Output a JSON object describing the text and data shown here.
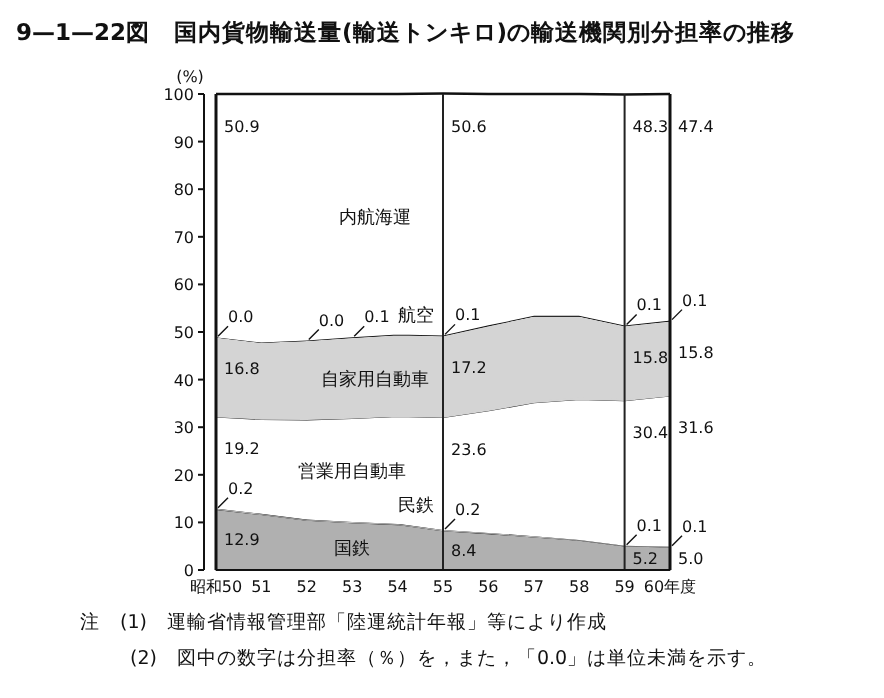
{
  "chart_data": {
    "type": "area",
    "stacked": true,
    "title": "9—1—22図　国内貨物輸送量(輸送トンキロ)の輸送機関別分担率の推移",
    "ylabel": "(%)",
    "x": [
      50,
      51,
      52,
      53,
      54,
      55,
      56,
      57,
      58,
      59,
      60
    ],
    "xlim": [
      50,
      60
    ],
    "xticks": [
      {
        "value": 50,
        "label": "昭和50"
      },
      51,
      52,
      53,
      54,
      55,
      56,
      57,
      58,
      59,
      {
        "value": 60,
        "label": "60年度"
      }
    ],
    "ylim": [
      0,
      100
    ],
    "yticks": [
      0,
      10,
      20,
      30,
      40,
      50,
      60,
      70,
      80,
      90,
      100
    ],
    "grid": false,
    "series": [
      {
        "name": "国鉄",
        "color": "#b0b0b0",
        "values": [
          12.9,
          11.8,
          10.6,
          10.1,
          9.7,
          8.4,
          7.8,
          7.1,
          6.4,
          5.2,
          5.0
        ],
        "value_labels": [
          "12.9",
          null,
          null,
          null,
          null,
          "8.4",
          null,
          null,
          null,
          "5.2",
          "5.0"
        ]
      },
      {
        "name": "民鉄",
        "color": "#ffffff",
        "values": [
          0.2,
          0.2,
          0.2,
          0.2,
          0.2,
          0.2,
          0.2,
          0.2,
          0.1,
          0.1,
          0.1
        ],
        "value_labels": [
          "0.2",
          null,
          null,
          null,
          null,
          "0.2",
          null,
          null,
          null,
          "0.1",
          "0.1"
        ]
      },
      {
        "name": "営業用自動車",
        "color": "#ffffff",
        "values": [
          19.2,
          19.8,
          20.9,
          21.7,
          22.5,
          23.6,
          25.6,
          28.0,
          29.5,
          30.4,
          31.6
        ],
        "value_labels": [
          "19.2",
          null,
          null,
          null,
          null,
          "23.6",
          null,
          null,
          null,
          "30.4",
          "31.6"
        ]
      },
      {
        "name": "自家用自動車",
        "color": "#d4d4d4",
        "values": [
          16.8,
          16.2,
          16.7,
          17.0,
          17.2,
          17.2,
          17.9,
          18.2,
          17.5,
          15.8,
          15.8
        ],
        "value_labels": [
          "16.8",
          null,
          null,
          null,
          null,
          "17.2",
          null,
          null,
          null,
          "15.8",
          "15.8"
        ]
      },
      {
        "name": "航空",
        "color": "#111111",
        "values": [
          0.0,
          0.0,
          0.0,
          0.1,
          0.1,
          0.1,
          0.1,
          0.1,
          0.1,
          0.1,
          0.1
        ],
        "value_labels": [
          "0.0",
          null,
          "0.0",
          "0.1",
          null,
          "0.1",
          null,
          null,
          null,
          "0.1",
          "0.1"
        ]
      },
      {
        "name": "内航海運",
        "color": "#ffffff",
        "values": [
          50.9,
          52.0,
          51.6,
          50.9,
          50.3,
          50.6,
          48.4,
          46.4,
          46.4,
          48.3,
          47.4
        ],
        "value_labels": [
          "50.9",
          null,
          null,
          null,
          null,
          "50.6",
          null,
          null,
          null,
          "48.3",
          "47.4"
        ]
      }
    ],
    "ref_lines": [
      {
        "axis": "x",
        "value": 55,
        "label": null
      },
      {
        "axis": "x",
        "value": 59,
        "label": null
      }
    ],
    "annotations": [
      "注　(1)　運輸省情報管理部「陸運統計年報」等により作成",
      "(2)　図中の数字は分担率（％）を，また，「0.0」は単位未満を示す。"
    ]
  }
}
